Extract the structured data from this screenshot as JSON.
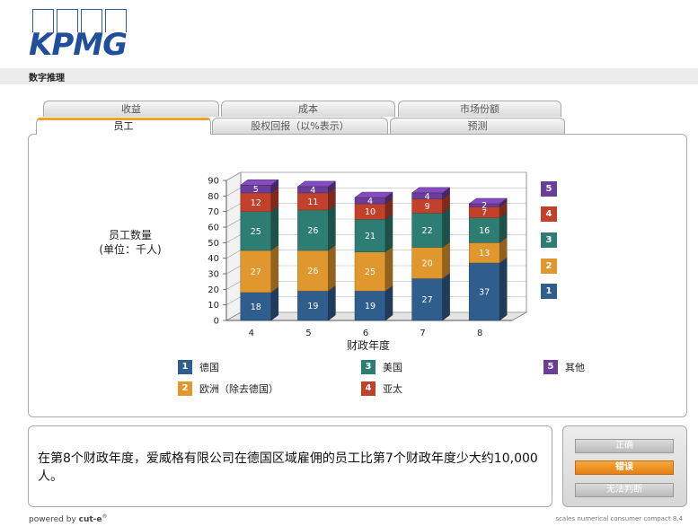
{
  "brand": {
    "logo_text": "KPMG",
    "color": "#1f4e9c"
  },
  "section_title": "数字推理",
  "tabs": {
    "row1": [
      {
        "label": "收益"
      },
      {
        "label": "成本"
      },
      {
        "label": "市场份额"
      }
    ],
    "row2": [
      {
        "label": "员工",
        "active": true
      },
      {
        "label": "股权回报（以%表示）"
      },
      {
        "label": "预测"
      }
    ]
  },
  "chart_data": {
    "type": "bar",
    "stacked": true,
    "three_d": true,
    "ylabel": "员工数量\n(单位：千人)",
    "xlabel": "财政年度",
    "categories": [
      "4",
      "5",
      "6",
      "7",
      "8"
    ],
    "ylim": [
      0,
      90
    ],
    "yticks": [
      0,
      10,
      20,
      30,
      40,
      50,
      60,
      70,
      80,
      90
    ],
    "series": [
      {
        "name": "德国",
        "key": "1",
        "color": "#2f5d8c",
        "values": [
          18,
          19,
          19,
          27,
          37
        ]
      },
      {
        "name": "欧洲（除去德国）",
        "key": "2",
        "color": "#e0972e",
        "values": [
          27,
          26,
          25,
          20,
          13
        ]
      },
      {
        "name": "美国",
        "key": "3",
        "color": "#2e7d72",
        "values": [
          25,
          26,
          21,
          22,
          16
        ]
      },
      {
        "name": "亚太",
        "key": "4",
        "color": "#c2412b",
        "values": [
          12,
          11,
          10,
          9,
          7
        ]
      },
      {
        "name": "其他",
        "key": "5",
        "color": "#6a3d9a",
        "values": [
          5,
          4,
          4,
          4,
          2
        ]
      }
    ],
    "legend_position": "bottom"
  },
  "ylabel_lines": [
    "员工数量",
    "(单位：千人)"
  ],
  "statement": "在第8个财政年度，爱威格有限公司在德国区域雇佣的员工比第7个财政年度少大约10,000人。",
  "answers": [
    {
      "label": "正确",
      "selected": false
    },
    {
      "label": "错误",
      "selected": true
    },
    {
      "label": "无法判断",
      "selected": false
    }
  ],
  "footer": {
    "powered_prefix": "powered by ",
    "powered_brand": "cut-e",
    "powered_mark": "®",
    "version": "scales numerical consumer compact 8.4"
  }
}
